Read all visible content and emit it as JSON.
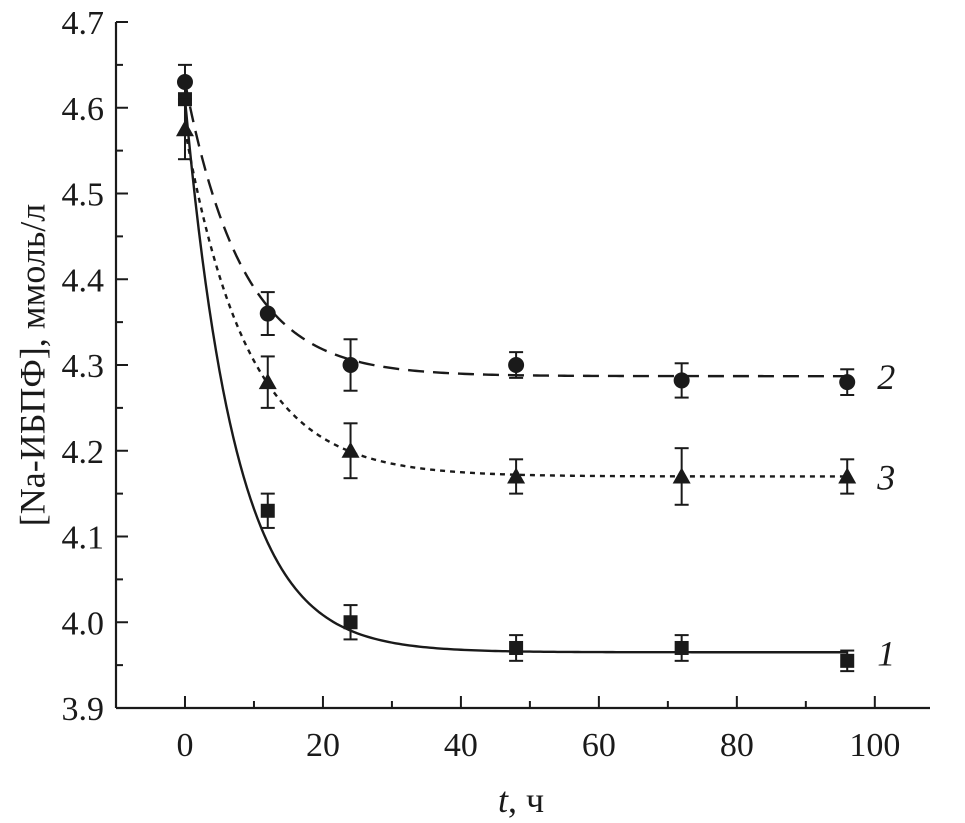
{
  "chart_data": {
    "type": "scatter",
    "xlabel_italic": "t",
    "xlabel_rest": ", ч",
    "ylabel": "[Na-ИБПФ], ммоль/л",
    "xlim": [
      -10,
      108
    ],
    "ylim": [
      3.9,
      4.7
    ],
    "x_ticks": [
      0,
      20,
      40,
      60,
      80,
      100
    ],
    "x_tick_labels": [
      "0",
      "20",
      "40",
      "60",
      "80",
      "100"
    ],
    "y_ticks": [
      3.9,
      4.0,
      4.1,
      4.2,
      4.3,
      4.4,
      4.5,
      4.6,
      4.7
    ],
    "y_tick_labels": [
      "3.9",
      "4.0",
      "4.1",
      "4.2",
      "4.3",
      "4.4",
      "4.5",
      "4.6",
      "4.7"
    ],
    "grid": false,
    "legend": "none",
    "series": [
      {
        "label": "1",
        "marker": "square",
        "line_style": "solid",
        "points": [
          {
            "x": 0,
            "y": 4.61,
            "err": 0.0
          },
          {
            "x": 12,
            "y": 4.13,
            "err": 0.02
          },
          {
            "x": 24,
            "y": 4.0,
            "err": 0.02
          },
          {
            "x": 48,
            "y": 3.97,
            "err": 0.015
          },
          {
            "x": 72,
            "y": 3.97,
            "err": 0.015
          },
          {
            "x": 96,
            "y": 3.955,
            "err": 0.012
          }
        ],
        "fit": {
          "y0": 4.61,
          "yinf": 3.965,
          "k": 0.135
        }
      },
      {
        "label": "2",
        "marker": "circle",
        "line_style": "dashed",
        "points": [
          {
            "x": 0,
            "y": 4.63,
            "err": 0.02
          },
          {
            "x": 12,
            "y": 4.36,
            "err": 0.025
          },
          {
            "x": 24,
            "y": 4.3,
            "err": 0.03
          },
          {
            "x": 48,
            "y": 4.3,
            "err": 0.015
          },
          {
            "x": 72,
            "y": 4.282,
            "err": 0.02
          },
          {
            "x": 96,
            "y": 4.28,
            "err": 0.015
          }
        ],
        "fit": {
          "y0": 4.63,
          "yinf": 4.287,
          "k": 0.12
        }
      },
      {
        "label": "3",
        "marker": "triangle",
        "line_style": "dotted",
        "points": [
          {
            "x": 0,
            "y": 4.575,
            "err": 0.035
          },
          {
            "x": 12,
            "y": 4.28,
            "err": 0.03
          },
          {
            "x": 24,
            "y": 4.2,
            "err": 0.032
          },
          {
            "x": 48,
            "y": 4.17,
            "err": 0.02
          },
          {
            "x": 72,
            "y": 4.17,
            "err": 0.033
          },
          {
            "x": 96,
            "y": 4.17,
            "err": 0.02
          }
        ],
        "fit": {
          "y0": 4.575,
          "yinf": 4.17,
          "k": 0.11
        }
      }
    ]
  }
}
